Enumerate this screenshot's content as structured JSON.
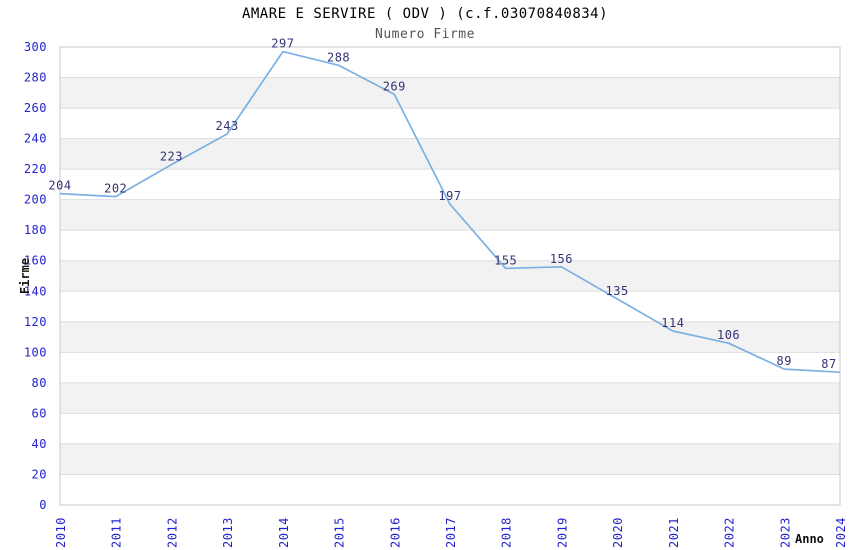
{
  "chart_data": {
    "type": "line",
    "title": "AMARE E SERVIRE ( ODV ) (c.f.03070840834)",
    "subtitle": "Numero Firme",
    "xlabel": "Anno",
    "ylabel": "Firme",
    "categories": [
      "2010",
      "2011",
      "2012",
      "2013",
      "2014",
      "2015",
      "2016",
      "2017",
      "2018",
      "2019",
      "2020",
      "2021",
      "2022",
      "2023",
      "2024"
    ],
    "series": [
      {
        "name": "Numero Firme",
        "values": [
          204,
          202,
          223,
          243,
          297,
          288,
          269,
          197,
          155,
          156,
          135,
          114,
          106,
          89,
          87
        ]
      }
    ],
    "ylim": [
      0,
      300
    ],
    "yticks": [
      0,
      20,
      40,
      60,
      80,
      100,
      120,
      140,
      160,
      180,
      200,
      220,
      240,
      260,
      280,
      300
    ],
    "grid": "horizontal-alternating-bands",
    "legend": "none",
    "data_labels": "above-points",
    "colors": {
      "line": "#7cb0e3",
      "data_label": "#333377",
      "tick_label": "#2323cc",
      "band_gray": "#f2f2f2",
      "gridline": "#dddddd",
      "plot_border": "#c8c8c8",
      "title": "#000000",
      "subtitle": "#555555",
      "axis_title": "#111111",
      "background": "#ffffff"
    }
  }
}
